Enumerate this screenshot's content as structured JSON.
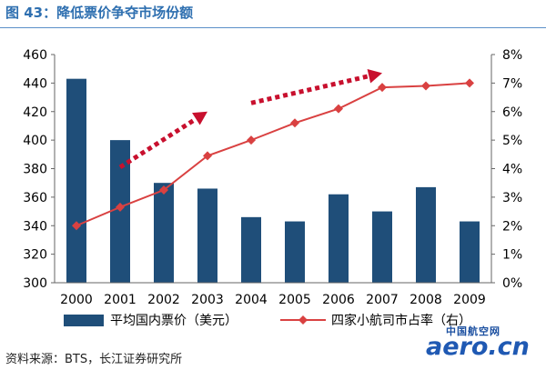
{
  "figure_title": "图 43：降低票价争夺市场份额",
  "source_note": "资料来源：BTS，长江证券研究所",
  "watermark": {
    "cn": "中国航空网",
    "en": "aero.cn"
  },
  "colors": {
    "bar": "#1f4e79",
    "line": "#d94141",
    "arrow": "#c8102e",
    "title": "#2e6fb0"
  },
  "chart_data": {
    "type": "bar+line",
    "title": "",
    "categories": [
      "2000",
      "2001",
      "2002",
      "2003",
      "2004",
      "2005",
      "2006",
      "2007",
      "2008",
      "2009"
    ],
    "series": [
      {
        "name": "平均国内票价（美元）",
        "type": "bar",
        "axis": "left",
        "values": [
          443,
          400,
          370,
          366,
          346,
          343,
          362,
          350,
          367,
          343
        ]
      },
      {
        "name": "四家小航司市占率（右）",
        "type": "line",
        "axis": "right",
        "values": [
          2.0,
          2.65,
          3.25,
          4.45,
          5.0,
          5.6,
          6.1,
          6.85,
          6.9,
          7.0
        ]
      }
    ],
    "y_left": {
      "min": 300,
      "max": 460,
      "ticks": [
        "300",
        "320",
        "340",
        "360",
        "380",
        "400",
        "420",
        "440",
        "460"
      ]
    },
    "y_right": {
      "min": 0,
      "max": 8,
      "ticks": [
        "0%",
        "1%",
        "2%",
        "3%",
        "4%",
        "5%",
        "6%",
        "7%",
        "8%"
      ]
    },
    "annotations": [
      {
        "type": "dotted-arrow",
        "from": {
          "x": "2001",
          "y": 381
        },
        "to": {
          "x": "2003",
          "y": 420
        }
      },
      {
        "type": "dotted-arrow",
        "from": {
          "x": "2004",
          "y": 426
        },
        "to": {
          "x": "2007",
          "y": 447
        }
      }
    ],
    "grid": false,
    "legend": "bottom"
  }
}
